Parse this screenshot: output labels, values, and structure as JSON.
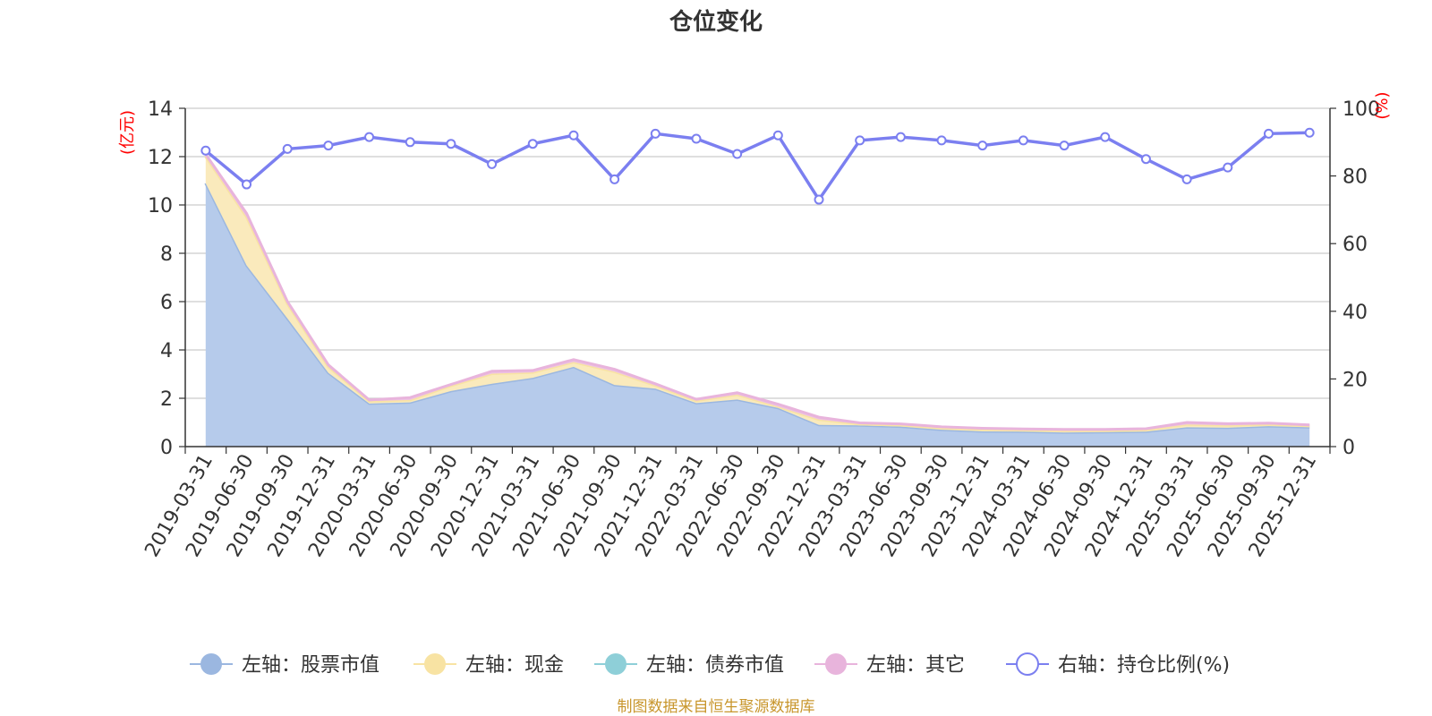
{
  "chart_data": {
    "type": "area",
    "title": "仓位变化",
    "left_axis": {
      "unit": "(亿元)",
      "ylim": [
        0,
        14
      ],
      "ticks": [
        0,
        2,
        4,
        6,
        8,
        10,
        12,
        14
      ]
    },
    "right_axis": {
      "unit": "(%)",
      "ylim": [
        0,
        100
      ],
      "ticks": [
        0,
        20,
        40,
        60,
        80,
        100
      ]
    },
    "categories": [
      "2019-03-31",
      "2019-06-30",
      "2019-09-30",
      "2019-12-31",
      "2020-03-31",
      "2020-06-30",
      "2020-09-30",
      "2020-12-31",
      "2021-03-31",
      "2021-06-30",
      "2021-09-30",
      "2021-12-31",
      "2022-03-31",
      "2022-06-30",
      "2022-09-30",
      "2022-12-31",
      "2023-03-31",
      "2023-06-30",
      "2023-09-30",
      "2023-12-31",
      "2024-03-31",
      "2024-06-30",
      "2024-09-30",
      "2024-12-31",
      "2025-03-31",
      "2025-06-30",
      "2025-09-30",
      "2025-12-31"
    ],
    "series": [
      {
        "name": "左轴：股票市值",
        "axis": "left",
        "kind": "stacked-area",
        "color": "#9bb7e0",
        "fill": "#b6cbeb",
        "values": [
          10.9,
          7.5,
          5.3,
          3.05,
          1.78,
          1.83,
          2.3,
          2.6,
          2.85,
          3.3,
          2.55,
          2.4,
          1.8,
          1.95,
          1.6,
          0.9,
          0.88,
          0.83,
          0.7,
          0.63,
          0.62,
          0.58,
          0.6,
          0.62,
          0.8,
          0.78,
          0.85,
          0.8
        ]
      },
      {
        "name": "左轴：现金",
        "axis": "left",
        "kind": "stacked-area",
        "color": "#f8e3a3",
        "fill": "#faeabc",
        "values": [
          1.1,
          2.0,
          0.6,
          0.25,
          0.1,
          0.1,
          0.22,
          0.42,
          0.22,
          0.2,
          0.55,
          0.13,
          0.1,
          0.2,
          0.06,
          0.22,
          0.05,
          0.06,
          0.07,
          0.08,
          0.06,
          0.08,
          0.06,
          0.07,
          0.12,
          0.1,
          0.07,
          0.06
        ]
      },
      {
        "name": "左轴：债券市值",
        "axis": "left",
        "kind": "stacked-area",
        "color": "#8ecfd8",
        "fill": "#a8dde3",
        "values": [
          0,
          0,
          0,
          0,
          0,
          0,
          0,
          0,
          0,
          0,
          0,
          0,
          0,
          0,
          0,
          0,
          0,
          0,
          0,
          0,
          0,
          0,
          0,
          0,
          0,
          0,
          0,
          0
        ]
      },
      {
        "name": "左轴：其它",
        "axis": "left",
        "kind": "stacked-area",
        "color": "#e8b4dc",
        "fill": "#eec3e3",
        "values": [
          0.1,
          0.15,
          0.1,
          0.08,
          0.05,
          0.1,
          0.05,
          0.1,
          0.08,
          0.1,
          0.1,
          0.07,
          0.06,
          0.08,
          0.1,
          0.1,
          0.05,
          0.05,
          0.05,
          0.05,
          0.05,
          0.05,
          0.05,
          0.05,
          0.08,
          0.07,
          0.05,
          0.04
        ]
      },
      {
        "name": "右轴：持仓比例(%)",
        "axis": "right",
        "kind": "line",
        "color": "#7b7ff0",
        "values": [
          87.5,
          77.5,
          88,
          89,
          91.5,
          90,
          89.5,
          83.5,
          89.5,
          92,
          79,
          92.5,
          91,
          86.5,
          92,
          73,
          90.5,
          91.5,
          90.5,
          89,
          90.5,
          89,
          91.5,
          85,
          79,
          82.5,
          92.5,
          92.8
        ]
      }
    ],
    "legend_position": "bottom",
    "grid": true
  },
  "source_note": "制图数据来自恒生聚源数据库"
}
